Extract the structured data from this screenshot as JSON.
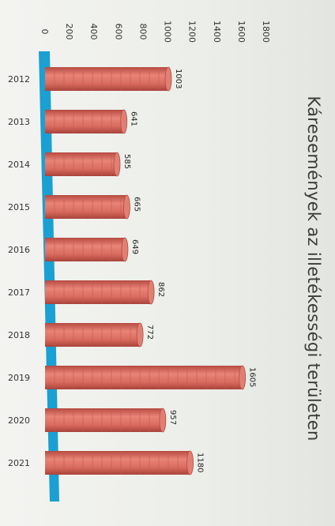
{
  "chart_data": {
    "type": "bar",
    "title": "Káresemények az illetékességi területen",
    "categories": [
      "2012",
      "2013",
      "2014",
      "2015",
      "2016",
      "2017",
      "2018",
      "2019",
      "2020",
      "2021"
    ],
    "values": [
      1003,
      641,
      585,
      665,
      649,
      862,
      772,
      1605,
      957,
      1180
    ],
    "value_labels": [
      "1003",
      "641",
      "585",
      "665",
      "649",
      "862",
      "772",
      "1605",
      "957",
      "1180"
    ],
    "ylim": [
      0,
      1800
    ],
    "y_ticks": [
      "0",
      "200",
      "400",
      "600",
      "800",
      "1000",
      "1200",
      "1400",
      "1600",
      "1800"
    ],
    "bar_color": "#d96b5f",
    "floor_color": "#1aa0d2",
    "grid": false,
    "legend": "none"
  }
}
